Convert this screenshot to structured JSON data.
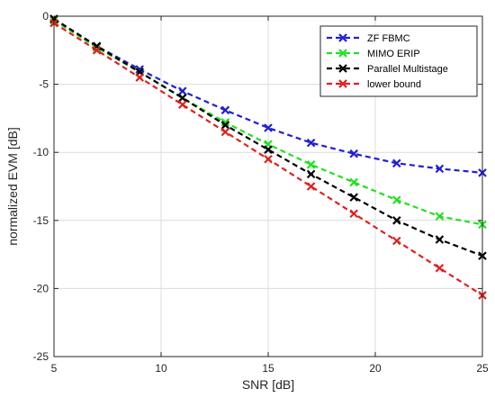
{
  "chart_data": {
    "type": "line",
    "title": "",
    "xlabel": "SNR [dB]",
    "ylabel": "normalized EVM [dB]",
    "xlim": [
      5,
      25
    ],
    "ylim": [
      -25,
      0
    ],
    "xticks": [
      5,
      10,
      15,
      20,
      25
    ],
    "yticks": [
      0,
      -5,
      -10,
      -15,
      -20,
      -25
    ],
    "grid": true,
    "legend": "top-right",
    "x": [
      5,
      7,
      9,
      11,
      13,
      15,
      17,
      19,
      21,
      23,
      25
    ],
    "series": [
      {
        "name": "ZF FBMC",
        "color": "#1f1fd6",
        "marker": "x",
        "values": [
          -0.2,
          -2.2,
          -3.9,
          -5.5,
          -6.9,
          -8.2,
          -9.3,
          -10.1,
          -10.8,
          -11.2,
          -11.5
        ]
      },
      {
        "name": "MIMO ERIP",
        "color": "#22e022",
        "marker": "x",
        "values": [
          -0.3,
          -2.3,
          -4.1,
          -6.0,
          -7.8,
          -9.4,
          -10.9,
          -12.2,
          -13.5,
          -14.7,
          -15.3
        ]
      },
      {
        "name": "Parallel Multistage",
        "color": "#000000",
        "marker": "x",
        "values": [
          -0.2,
          -2.2,
          -4.1,
          -6.0,
          -8.0,
          -9.8,
          -11.6,
          -13.3,
          -15.0,
          -16.4,
          -17.6
        ]
      },
      {
        "name": "lower bound",
        "color": "#e02020",
        "marker": "x",
        "values": [
          -0.5,
          -2.5,
          -4.5,
          -6.5,
          -8.5,
          -10.5,
          -12.5,
          -14.5,
          -16.5,
          -18.5,
          -20.5
        ]
      }
    ]
  }
}
